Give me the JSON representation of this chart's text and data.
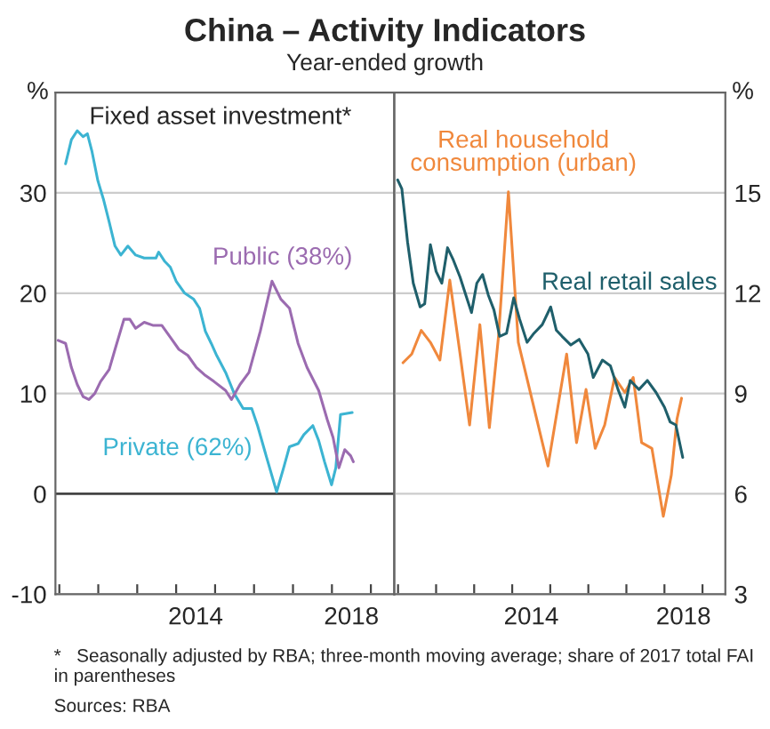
{
  "chart_data": [
    {
      "type": "line",
      "title": "China – Activity Indicators",
      "subtitle": "Year-ended growth",
      "ylabel": "%",
      "annotations": [
        "Fixed asset investment*",
        "*   Seasonally adjusted by RBA; three-month moving average; share of 2017 total FAI in parentheses",
        "Sources: RBA"
      ],
      "xlim": [
        2010.4,
        2019.1
      ],
      "xticks": [
        {
          "value": 2010.5,
          "label": null
        },
        {
          "value": 2011.5,
          "label": null
        },
        {
          "value": 2012.5,
          "label": null
        },
        {
          "value": 2013.5,
          "label": null
        },
        {
          "value": 2014.5,
          "label": null
        },
        {
          "value": 2015.5,
          "label": null
        },
        {
          "value": 2016.5,
          "label": null
        },
        {
          "value": 2017.5,
          "label": null
        },
        {
          "value": 2018.5,
          "label": null
        },
        2014,
        2018
      ],
      "ylim": [
        -10,
        40
      ],
      "yticks": [
        -10,
        0,
        10,
        20,
        30
      ],
      "grid": "y",
      "legend": false,
      "ref_lines": [
        {
          "axis": "y",
          "value": 0,
          "label": null,
          "color": "#444444"
        }
      ],
      "series": [
        {
          "name": "Private (62%)",
          "color": "#3cb4d2",
          "x": [
            2010.66,
            2010.81,
            2010.96,
            2011.11,
            2011.22,
            2011.34,
            2011.49,
            2011.63,
            2011.78,
            2011.93,
            2012.08,
            2012.26,
            2012.46,
            2012.68,
            2012.98,
            2013.05,
            2013.2,
            2013.35,
            2013.5,
            2013.72,
            2013.95,
            2014.1,
            2014.25,
            2014.4,
            2014.54,
            2014.77,
            2014.99,
            2015.22,
            2015.44,
            2015.59,
            2015.81,
            2016.08,
            2016.26,
            2016.41,
            2016.63,
            2016.78,
            2017.01,
            2017.16,
            2017.31,
            2017.49,
            2017.6,
            2017.72,
            2018.02
          ],
          "values": [
            32.9,
            35.3,
            36.2,
            35.6,
            35.9,
            34.1,
            31.2,
            29.4,
            27.1,
            24.7,
            23.8,
            24.7,
            23.8,
            23.5,
            23.5,
            24.1,
            23.2,
            22.6,
            21.2,
            20.0,
            19.4,
            18.5,
            16.2,
            15.0,
            13.8,
            12.1,
            10.0,
            8.5,
            8.5,
            6.8,
            3.8,
            0.2,
            2.6,
            4.7,
            5.0,
            5.9,
            6.8,
            5.3,
            3.2,
            0.9,
            2.6,
            7.9,
            8.1
          ]
        },
        {
          "name": "Public (38%)",
          "color": "#9b6bb0",
          "x": [
            2010.47,
            2010.66,
            2010.81,
            2010.96,
            2011.11,
            2011.26,
            2011.41,
            2011.56,
            2011.78,
            2011.93,
            2012.16,
            2012.31,
            2012.46,
            2012.68,
            2012.9,
            2013.13,
            2013.35,
            2013.57,
            2013.8,
            2014.02,
            2014.25,
            2014.47,
            2014.77,
            2014.92,
            2015.14,
            2015.37,
            2015.66,
            2015.96,
            2016.19,
            2016.41,
            2016.63,
            2016.86,
            2017.16,
            2017.38,
            2017.53,
            2017.68,
            2017.83,
            2017.98,
            2018.05
          ],
          "values": [
            15.3,
            15.0,
            12.6,
            10.9,
            9.7,
            9.4,
            10.0,
            11.2,
            12.4,
            14.4,
            17.4,
            17.4,
            16.5,
            17.1,
            16.8,
            16.8,
            15.6,
            14.4,
            13.8,
            12.6,
            11.8,
            11.2,
            10.3,
            9.4,
            10.9,
            12.1,
            16.2,
            21.2,
            19.4,
            18.5,
            15.0,
            12.6,
            10.3,
            7.4,
            5.6,
            2.6,
            4.4,
            3.8,
            3.2
          ]
        }
      ]
    },
    {
      "type": "line",
      "ylabel": "%",
      "xlim": [
        2010.4,
        2019.1
      ],
      "xticks": [
        {
          "value": 2010.5,
          "label": null
        },
        {
          "value": 2011.5,
          "label": null
        },
        {
          "value": 2012.5,
          "label": null
        },
        {
          "value": 2013.5,
          "label": null
        },
        {
          "value": 2014.5,
          "label": null
        },
        {
          "value": 2015.5,
          "label": null
        },
        {
          "value": 2016.5,
          "label": null
        },
        {
          "value": 2017.5,
          "label": null
        },
        {
          "value": 2018.5,
          "label": null
        },
        2014,
        2018
      ],
      "ylim": [
        3,
        18
      ],
      "yticks": [
        3,
        6,
        9,
        12,
        15
      ],
      "grid": "y",
      "legend": false,
      "series": [
        {
          "name": "Real household\nconsumption (urban)",
          "color": "#f0883c",
          "x": [
            2010.63,
            2010.86,
            2011.11,
            2011.35,
            2011.6,
            2011.86,
            2012.13,
            2012.38,
            2012.65,
            2012.9,
            2013.14,
            2013.4,
            2013.66,
            2014.44,
            2014.93,
            2015.19,
            2015.44,
            2015.68,
            2015.93,
            2016.19,
            2016.46,
            2016.68,
            2016.9,
            2017.17,
            2017.47,
            2017.68,
            2017.83,
            2017.95
          ],
          "values": [
            9.92,
            10.18,
            10.89,
            10.53,
            10.0,
            12.39,
            10.18,
            8.06,
            11.06,
            7.98,
            10.71,
            15.03,
            10.53,
            6.83,
            10.18,
            7.53,
            9.12,
            7.36,
            8.06,
            9.48,
            9.03,
            9.48,
            7.53,
            7.36,
            5.33,
            6.56,
            8.24,
            8.86
          ]
        },
        {
          "name": "Real retail sales",
          "color": "#1f5f6b",
          "x": [
            2010.49,
            2010.6,
            2010.75,
            2010.9,
            2011.08,
            2011.2,
            2011.35,
            2011.5,
            2011.65,
            2011.8,
            2011.95,
            2012.13,
            2012.28,
            2012.43,
            2012.57,
            2012.72,
            2012.87,
            2013.02,
            2013.17,
            2013.35,
            2013.54,
            2013.69,
            2013.89,
            2014.07,
            2014.29,
            2014.51,
            2014.66,
            2014.81,
            2015.04,
            2015.26,
            2015.49,
            2015.63,
            2015.87,
            2016.08,
            2016.28,
            2016.46,
            2016.6,
            2016.83,
            2017.05,
            2017.28,
            2017.5,
            2017.65,
            2017.8,
            2017.98
          ],
          "values": [
            15.39,
            15.12,
            13.53,
            12.3,
            11.59,
            11.68,
            13.45,
            12.65,
            12.3,
            13.36,
            13.0,
            12.48,
            11.95,
            11.42,
            12.3,
            12.56,
            11.95,
            11.5,
            10.71,
            10.8,
            11.86,
            11.24,
            10.53,
            10.8,
            11.06,
            11.59,
            10.89,
            10.71,
            10.45,
            10.62,
            10.18,
            9.48,
            10.0,
            9.83,
            9.12,
            8.59,
            9.39,
            9.12,
            9.39,
            9.03,
            8.59,
            8.15,
            8.06,
            7.09
          ]
        }
      ]
    }
  ]
}
